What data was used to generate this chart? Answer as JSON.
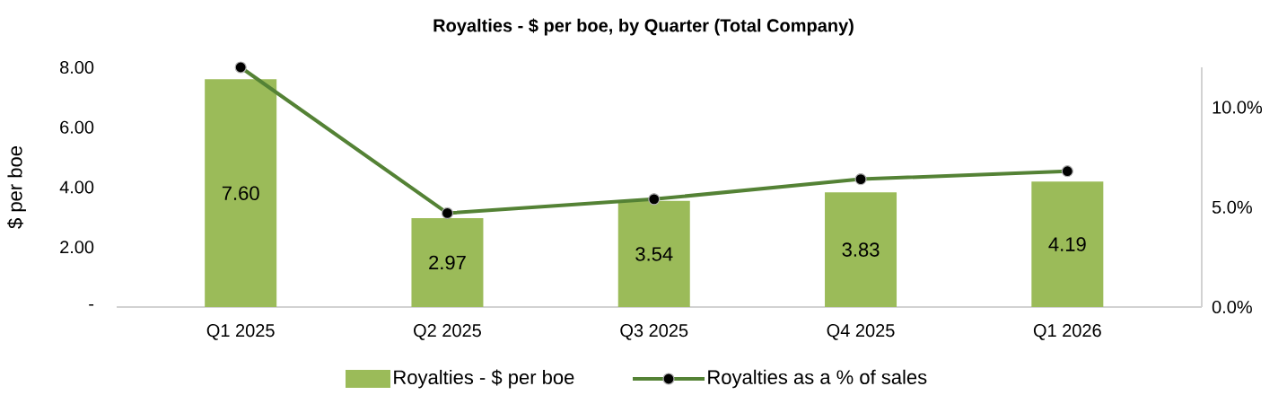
{
  "chart_data": {
    "type": "bar",
    "title": "Royalties - $ per boe, by Quarter (Total Company)",
    "ylabel": "$ per boe",
    "categories": [
      "Q1 2025",
      "Q2 2025",
      "Q3 2025",
      "Q4 2025",
      "Q1 2026"
    ],
    "series": [
      {
        "name": "Royalties - $  per boe",
        "color": "#9bbb59",
        "values": [
          7.6,
          2.97,
          3.54,
          3.83,
          4.19
        ],
        "value_labels": [
          "7.60",
          "2.97",
          "3.54",
          "3.83",
          "4.19"
        ]
      },
      {
        "name": "Royalties as a % of sales",
        "type": "line",
        "axis": "y2",
        "color": "#548235",
        "values": [
          12.0,
          4.7,
          5.4,
          6.4,
          6.8
        ]
      }
    ],
    "ylim": [
      0,
      8
    ],
    "yticks": [
      {
        "value": 0,
        "label": "-"
      },
      {
        "value": 2,
        "label": "2.00"
      },
      {
        "value": 4,
        "label": "4.00"
      },
      {
        "value": 6,
        "label": "6.00"
      },
      {
        "value": 8,
        "label": "8.00"
      }
    ],
    "y2lim": [
      0,
      12
    ],
    "y2ticks": [
      {
        "value": 0,
        "label": "0.0%"
      },
      {
        "value": 5,
        "label": "5.0%"
      },
      {
        "value": 10,
        "label": "10.0%"
      }
    ],
    "legend": "bottom",
    "marker": "circle",
    "line_style": "solid"
  }
}
